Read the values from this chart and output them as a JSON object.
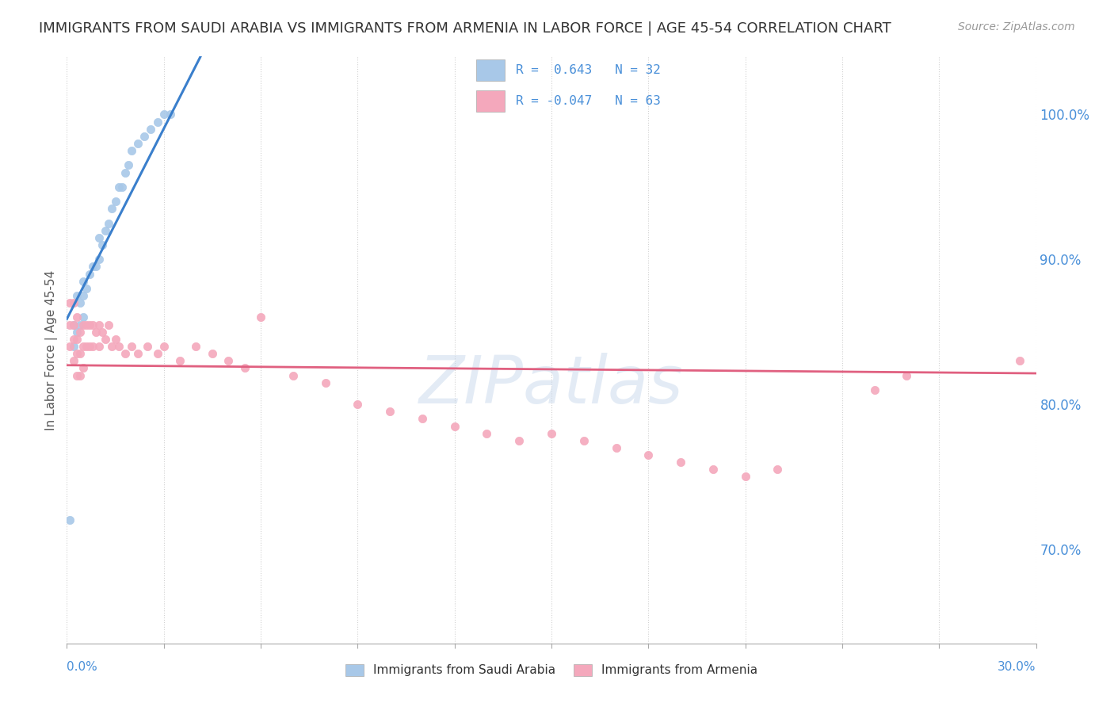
{
  "title": "IMMIGRANTS FROM SAUDI ARABIA VS IMMIGRANTS FROM ARMENIA IN LABOR FORCE | AGE 45-54 CORRELATION CHART",
  "source": "Source: ZipAtlas.com",
  "ylabel": "In Labor Force | Age 45-54",
  "xlim": [
    0.0,
    0.3
  ],
  "ylim": [
    0.635,
    1.04
  ],
  "y_tick_vals": [
    0.7,
    0.8,
    0.9,
    1.0
  ],
  "saudi_color": "#A8C8E8",
  "armenia_color": "#F4A8BC",
  "saudi_line_color": "#3A7FCC",
  "armenia_line_color": "#E06080",
  "saudi_R": 0.643,
  "saudi_N": 32,
  "armenia_R": -0.047,
  "armenia_N": 63,
  "watermark": "ZIPatlas",
  "saudi_points_x": [
    0.001,
    0.002,
    0.002,
    0.003,
    0.003,
    0.004,
    0.004,
    0.005,
    0.005,
    0.005,
    0.006,
    0.007,
    0.008,
    0.009,
    0.01,
    0.01,
    0.011,
    0.012,
    0.013,
    0.014,
    0.015,
    0.016,
    0.017,
    0.018,
    0.019,
    0.02,
    0.022,
    0.024,
    0.026,
    0.028,
    0.03,
    0.032
  ],
  "saudi_points_y": [
    0.72,
    0.84,
    0.855,
    0.85,
    0.875,
    0.855,
    0.87,
    0.86,
    0.875,
    0.885,
    0.88,
    0.89,
    0.895,
    0.895,
    0.9,
    0.915,
    0.91,
    0.92,
    0.925,
    0.935,
    0.94,
    0.95,
    0.95,
    0.96,
    0.965,
    0.975,
    0.98,
    0.985,
    0.99,
    0.995,
    1.0,
    1.0
  ],
  "armenia_points_x": [
    0.001,
    0.001,
    0.001,
    0.002,
    0.002,
    0.002,
    0.002,
    0.003,
    0.003,
    0.003,
    0.003,
    0.004,
    0.004,
    0.004,
    0.005,
    0.005,
    0.005,
    0.006,
    0.006,
    0.007,
    0.007,
    0.008,
    0.008,
    0.009,
    0.01,
    0.01,
    0.011,
    0.012,
    0.013,
    0.014,
    0.015,
    0.016,
    0.018,
    0.02,
    0.022,
    0.025,
    0.028,
    0.03,
    0.035,
    0.04,
    0.045,
    0.05,
    0.055,
    0.06,
    0.07,
    0.08,
    0.09,
    0.1,
    0.11,
    0.12,
    0.13,
    0.14,
    0.15,
    0.16,
    0.17,
    0.18,
    0.19,
    0.2,
    0.21,
    0.22,
    0.25,
    0.26,
    0.295
  ],
  "armenia_points_y": [
    0.84,
    0.855,
    0.87,
    0.83,
    0.845,
    0.855,
    0.87,
    0.82,
    0.835,
    0.845,
    0.86,
    0.82,
    0.835,
    0.85,
    0.825,
    0.84,
    0.855,
    0.84,
    0.855,
    0.84,
    0.855,
    0.84,
    0.855,
    0.85,
    0.84,
    0.855,
    0.85,
    0.845,
    0.855,
    0.84,
    0.845,
    0.84,
    0.835,
    0.84,
    0.835,
    0.84,
    0.835,
    0.84,
    0.83,
    0.84,
    0.835,
    0.83,
    0.825,
    0.86,
    0.82,
    0.815,
    0.8,
    0.795,
    0.79,
    0.785,
    0.78,
    0.775,
    0.78,
    0.775,
    0.77,
    0.765,
    0.76,
    0.755,
    0.75,
    0.755,
    0.81,
    0.82,
    0.83
  ],
  "background_color": "#FFFFFF",
  "grid_color": "#CCCCCC",
  "title_color": "#333333",
  "tick_color": "#4A90D9",
  "watermark_color": "#C8D8EC"
}
